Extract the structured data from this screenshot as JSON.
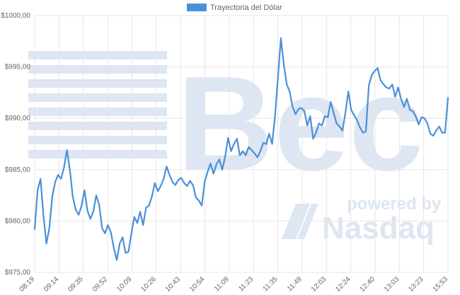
{
  "watermark": {
    "brand": "Bec",
    "tagline": "powered by",
    "partner": "Nasdaq"
  },
  "colors": {
    "series": "#4a90d9",
    "grid": "#e6e6e6",
    "axis_text": "#666666",
    "watermark": "#dde6f2"
  },
  "chart_data": {
    "type": "line",
    "title": "",
    "xlabel": "",
    "ylabel": "",
    "ylim": [
      975,
      1000
    ],
    "yticks": [
      975,
      980,
      985,
      990,
      995,
      1000
    ],
    "ytick_labels": [
      "$975,00",
      "$980,00",
      "$985,00",
      "$990,00",
      "$995,00",
      "$1000,00"
    ],
    "legend_position": "top-center",
    "grid": true,
    "xtick_labels": [
      "08:19",
      "09:14",
      "09:35",
      "09:52",
      "10:09",
      "10:26",
      "10:43",
      "10:54",
      "11:09",
      "11:23",
      "11:35",
      "11:49",
      "12:03",
      "12:24",
      "12:40",
      "13:03",
      "13:23",
      "15:53"
    ],
    "series": [
      {
        "name": "Trayectoria del Dólar",
        "values": [
          979.2,
          983.0,
          984.1,
          980.5,
          977.8,
          979.3,
          982.4,
          983.8,
          984.5,
          984.1,
          985.2,
          986.9,
          985.0,
          982.4,
          981.1,
          980.6,
          981.5,
          983.0,
          981.0,
          980.2,
          980.9,
          982.5,
          981.6,
          979.3,
          978.8,
          979.6,
          978.9,
          977.4,
          976.2,
          977.8,
          978.4,
          976.9,
          977.0,
          978.8,
          980.4,
          979.8,
          980.9,
          979.6,
          981.3,
          981.5,
          982.4,
          983.7,
          982.9,
          983.4,
          984.1,
          985.3,
          984.5,
          983.8,
          983.5,
          984.0,
          984.2,
          983.7,
          983.4,
          983.9,
          983.5,
          982.3,
          982.0,
          981.5,
          983.8,
          984.8,
          985.6,
          984.6,
          985.5,
          986.0,
          985.0,
          986.3,
          988.1,
          986.8,
          987.5,
          988.0,
          986.4,
          986.8,
          986.4,
          987.2,
          986.9,
          986.6,
          986.2,
          986.8,
          987.6,
          987.5,
          988.5,
          987.5,
          990.2,
          994.0,
          997.8,
          995.2,
          993.3,
          992.6,
          991.1,
          990.4,
          990.9,
          991.0,
          990.7,
          989.3,
          990.2,
          988.0,
          988.6,
          989.5,
          989.3,
          990.2,
          990.1,
          991.6,
          990.5,
          989.5,
          989.2,
          988.8,
          990.5,
          992.6,
          990.8,
          990.3,
          989.8,
          989.1,
          988.6,
          988.7,
          993.2,
          994.2,
          994.6,
          994.9,
          993.7,
          993.3,
          993.0,
          992.9,
          993.3,
          992.1,
          993.0,
          991.9,
          991.1,
          991.9,
          990.8,
          990.7,
          990.2,
          989.4,
          990.1,
          990.0,
          989.5,
          988.5,
          988.3,
          988.8,
          989.2,
          988.6,
          988.6,
          992.0
        ]
      }
    ]
  }
}
